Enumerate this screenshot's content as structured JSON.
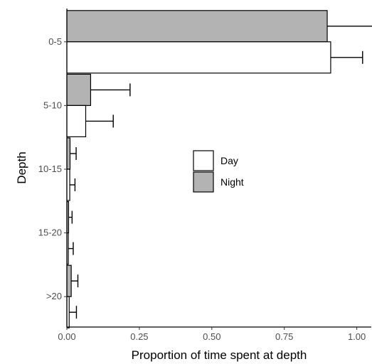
{
  "chart_data": {
    "type": "bar",
    "orientation": "horizontal",
    "xlabel": "Proportion of time spent at depth",
    "ylabel": "Depth",
    "xlim": [
      0,
      1.05
    ],
    "xticks": [
      0,
      0.25,
      0.5,
      0.75,
      1
    ],
    "xtick_labels": [
      "0.00",
      "0.25",
      "0.50",
      "0.75",
      "1.00"
    ],
    "categories": [
      "0-5",
      "5-10",
      "10-15",
      "15-20",
      ">20"
    ],
    "grid": false,
    "legend_position": "center-right",
    "series": [
      {
        "name": "Night",
        "color": "#b3b3b3",
        "values": [
          0.898,
          0.082,
          0.011,
          0.006,
          0.015
        ],
        "error_upper": [
          1.08,
          0.218,
          0.032,
          0.018,
          0.038
        ]
      },
      {
        "name": "Day",
        "color": "#ffffff",
        "values": [
          0.91,
          0.065,
          0.01,
          0.005,
          0.008
        ],
        "error_upper": [
          1.02,
          0.16,
          0.028,
          0.022,
          0.033
        ]
      }
    ]
  }
}
